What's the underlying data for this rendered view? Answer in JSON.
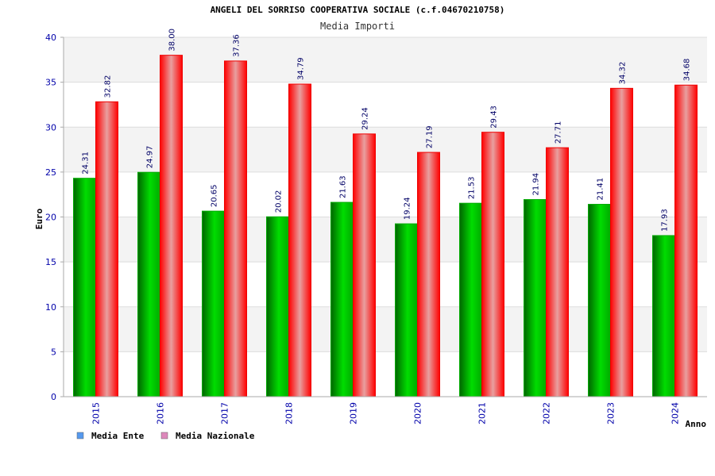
{
  "chart_data": {
    "type": "bar",
    "title": "ANGELI DEL SORRISO COOPERATIVA SOCIALE (c.f.04670210758)",
    "subtitle": "Media Importi",
    "xlabel": "Anno",
    "ylabel": "Euro",
    "ylim": [
      0,
      40
    ],
    "yticks": [
      0,
      5,
      10,
      15,
      20,
      25,
      30,
      35,
      40
    ],
    "grid": true,
    "legend_position": "bottom-left",
    "categories": [
      "2015",
      "2016",
      "2017",
      "2018",
      "2019",
      "2020",
      "2021",
      "2022",
      "2023",
      "2024"
    ],
    "series": [
      {
        "name": "Media Ente",
        "color": "#00aa00",
        "legend_color": "#5599ee",
        "values": [
          24.31,
          24.97,
          20.65,
          20.02,
          21.63,
          19.24,
          21.53,
          21.94,
          21.41,
          17.93
        ],
        "labels": [
          "24.31",
          "24.97",
          "20.65",
          "20.02",
          "21.63",
          "19.24",
          "21.53",
          "21.94",
          "21.41",
          "17.93"
        ]
      },
      {
        "name": "Media Nazionale",
        "color": "#ee0000",
        "legend_color": "#dd88bb",
        "values": [
          32.82,
          38.0,
          37.36,
          34.79,
          29.24,
          27.19,
          29.43,
          27.71,
          34.32,
          34.68
        ],
        "labels": [
          "32.82",
          "38.00",
          "37.36",
          "34.79",
          "29.24",
          "27.19",
          "29.43",
          "27.71",
          "34.32",
          "34.68"
        ]
      }
    ]
  }
}
